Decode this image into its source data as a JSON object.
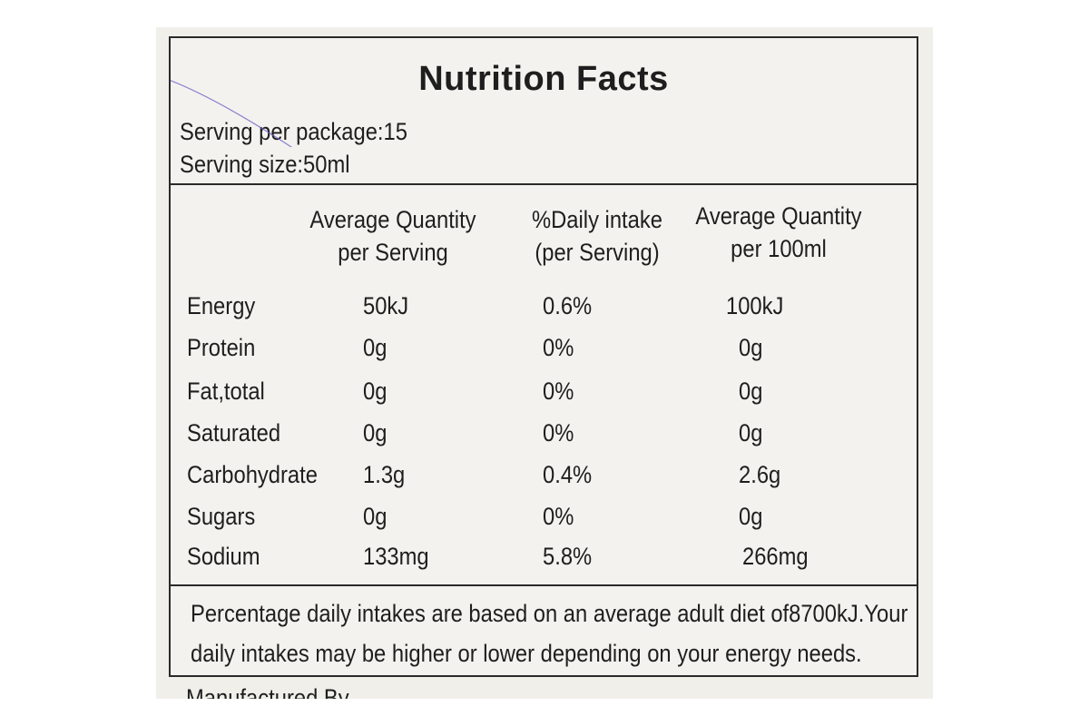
{
  "label": {
    "title": "Nutrition Facts",
    "servings_per_package": "Serving per package:15",
    "serving_size": "Serving size:50ml",
    "columns": [
      "",
      "Average Quantity\nper Serving",
      "%Daily intake\n(per Serving)",
      "Average Quantity\nper 100ml"
    ],
    "rows": [
      {
        "nutrient": "Energy",
        "per_serving": "50kJ",
        "daily_intake": "0.6%",
        "per_100ml": "100kJ"
      },
      {
        "nutrient": "Protein",
        "per_serving": "0g",
        "daily_intake": "0%",
        "per_100ml": "0g"
      },
      {
        "nutrient": "Fat,total",
        "per_serving": "0g",
        "daily_intake": "0%",
        "per_100ml": "0g"
      },
      {
        "nutrient": "Saturated",
        "per_serving": "0g",
        "daily_intake": "0%",
        "per_100ml": "0g"
      },
      {
        "nutrient": "Carbohydrate",
        "per_serving": "1.3g",
        "daily_intake": "0.4%",
        "per_100ml": "2.6g"
      },
      {
        "nutrient": "Sugars",
        "per_serving": "0g",
        "daily_intake": "0%",
        "per_100ml": "0g"
      },
      {
        "nutrient": "Sodium",
        "per_serving": "133mg",
        "daily_intake": "5.8%",
        "per_100ml": "266mg"
      }
    ],
    "footnote": "Percentage daily intakes are based on an average adult diet of8700kJ.Your daily intakes may be higher or lower depending on your energy needs.",
    "footnote_line1": "Percentage daily intakes are based on an average adult diet of8700kJ.Your",
    "footnote_line2": "daily intakes may be higher or lower depending on your energy needs."
  },
  "cutoff_text": "Manufactured By",
  "colors": {
    "paper": "#f4f2ee",
    "ink": "#1e1e1e",
    "border": "#2a2a2a",
    "pen": "#6b63c8"
  }
}
